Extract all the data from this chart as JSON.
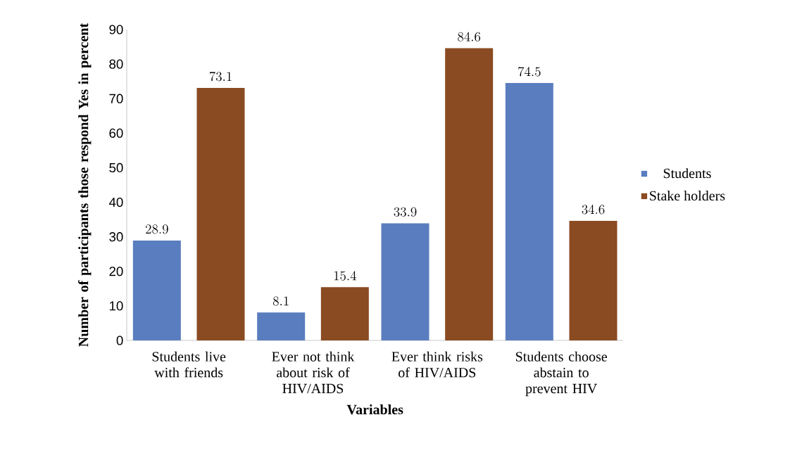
{
  "chart_data": {
    "type": "bar",
    "xlabel": "Variables",
    "ylabel": "Number of participants those respond Yes in percent",
    "categories": [
      "Students live with friends",
      "Ever not  think about risk of HIV/AIDS",
      "Ever think risks of HIV/AIDS",
      "Students choose abstain to prevent HIV"
    ],
    "series": [
      {
        "name": "Students",
        "color": "#5a7dbf",
        "values": [
          28.9,
          8.1,
          33.9,
          74.5
        ]
      },
      {
        "name": "Stake holders",
        "color": "#8a4b22",
        "values": [
          73.1,
          15.4,
          84.6,
          34.6
        ]
      }
    ],
    "ylim": [
      0,
      90
    ],
    "yticks": [
      0,
      10,
      20,
      30,
      40,
      50,
      60,
      70,
      80,
      90
    ],
    "data_labels": true,
    "legend": "right",
    "grid": false
  }
}
